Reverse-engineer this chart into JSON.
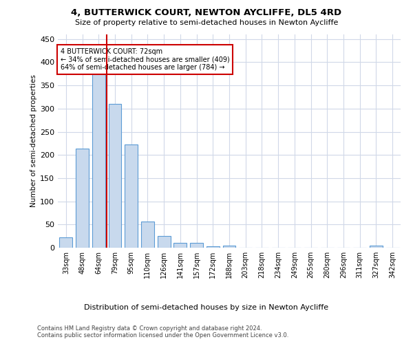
{
  "title": "4, BUTTERWICK COURT, NEWTON AYCLIFFE, DL5 4RD",
  "subtitle": "Size of property relative to semi-detached houses in Newton Aycliffe",
  "xlabel": "Distribution of semi-detached houses by size in Newton Aycliffe",
  "ylabel": "Number of semi-detached properties",
  "footnote1": "Contains HM Land Registry data © Crown copyright and database right 2024.",
  "footnote2": "Contains public sector information licensed under the Open Government Licence v3.0.",
  "annotation_title": "4 BUTTERWICK COURT: 72sqm",
  "annotation_line1": "← 34% of semi-detached houses are smaller (409)",
  "annotation_line2": "64% of semi-detached houses are larger (784) →",
  "bar_color": "#c8d9ed",
  "bar_edge_color": "#5b9bd5",
  "red_line_color": "#cc0000",
  "annotation_box_color": "#cc0000",
  "background_color": "#ffffff",
  "grid_color": "#d0d8e8",
  "categories": [
    "33sqm",
    "48sqm",
    "64sqm",
    "79sqm",
    "95sqm",
    "110sqm",
    "126sqm",
    "141sqm",
    "157sqm",
    "172sqm",
    "188sqm",
    "203sqm",
    "218sqm",
    "234sqm",
    "249sqm",
    "265sqm",
    "280sqm",
    "296sqm",
    "311sqm",
    "327sqm",
    "342sqm"
  ],
  "values": [
    22,
    213,
    375,
    310,
    222,
    57,
    25,
    10,
    10,
    3,
    5,
    0,
    0,
    0,
    0,
    0,
    0,
    0,
    0,
    5,
    0
  ],
  "ylim": [
    0,
    460
  ],
  "yticks": [
    0,
    50,
    100,
    150,
    200,
    250,
    300,
    350,
    400,
    450
  ],
  "red_line_x": 2.5
}
